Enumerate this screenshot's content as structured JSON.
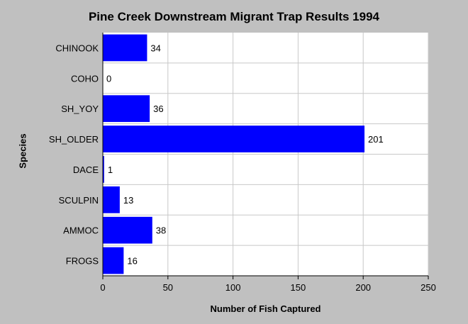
{
  "chart_data": {
    "type": "bar",
    "orientation": "horizontal",
    "title": "Pine Creek Downstream Migrant Trap Results 1994",
    "xlabel": "Number of Fish Captured",
    "ylabel": "Species",
    "categories": [
      "CHINOOK",
      "COHO",
      "SH_YOY",
      "SH_OLDER",
      "DACE",
      "SCULPIN",
      "AMMOC",
      "FROGS"
    ],
    "values": [
      34,
      0,
      36,
      201,
      1,
      13,
      38,
      16
    ],
    "xlim": [
      0,
      250
    ],
    "xticks": [
      0,
      50,
      100,
      150,
      200,
      250
    ],
    "grid": true,
    "data_labels": true,
    "bar_color": "#0000ff",
    "plot_background": "#ffffff",
    "page_background": "#c0c0c0"
  }
}
